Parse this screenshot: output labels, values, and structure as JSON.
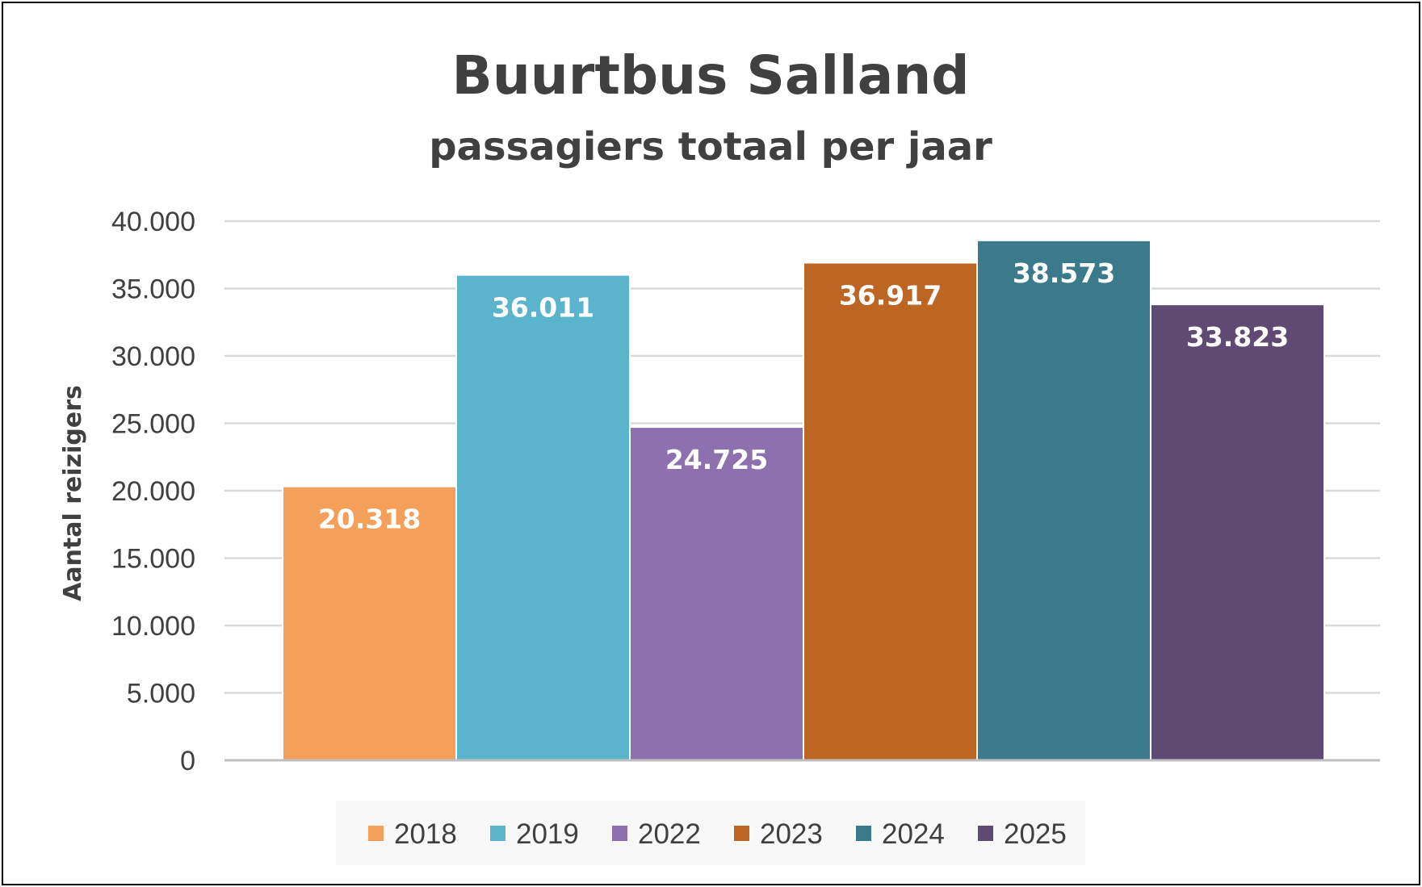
{
  "chart_data": {
    "type": "bar",
    "title": "Buurtbus Salland",
    "subtitle": "passagiers totaal per jaar",
    "xlabel": "",
    "ylabel": "Aantal reizigers",
    "ylim": [
      0,
      40000
    ],
    "yticks": [
      0,
      5000,
      10000,
      15000,
      20000,
      25000,
      30000,
      35000,
      40000
    ],
    "ytick_labels": [
      "0",
      "5.000",
      "10.000",
      "15.000",
      "20.000",
      "25.000",
      "30.000",
      "35.000",
      "40.000"
    ],
    "grid": true,
    "legend_position": "bottom",
    "series": [
      {
        "name": "2018",
        "value": 20318,
        "label": "20.318",
        "color": "#F5A05A"
      },
      {
        "name": "2019",
        "value": 36011,
        "label": "36.011",
        "color": "#5AB4CC"
      },
      {
        "name": "2022",
        "value": 24725,
        "label": "24.725",
        "color": "#8C71AE"
      },
      {
        "name": "2023",
        "value": 36917,
        "label": "36.917",
        "color": "#BD6523"
      },
      {
        "name": "2024",
        "value": 38573,
        "label": "38.573",
        "color": "#3B7A8A"
      },
      {
        "name": "2025",
        "value": 33823,
        "label": "33.823",
        "color": "#5E4A72"
      }
    ]
  }
}
